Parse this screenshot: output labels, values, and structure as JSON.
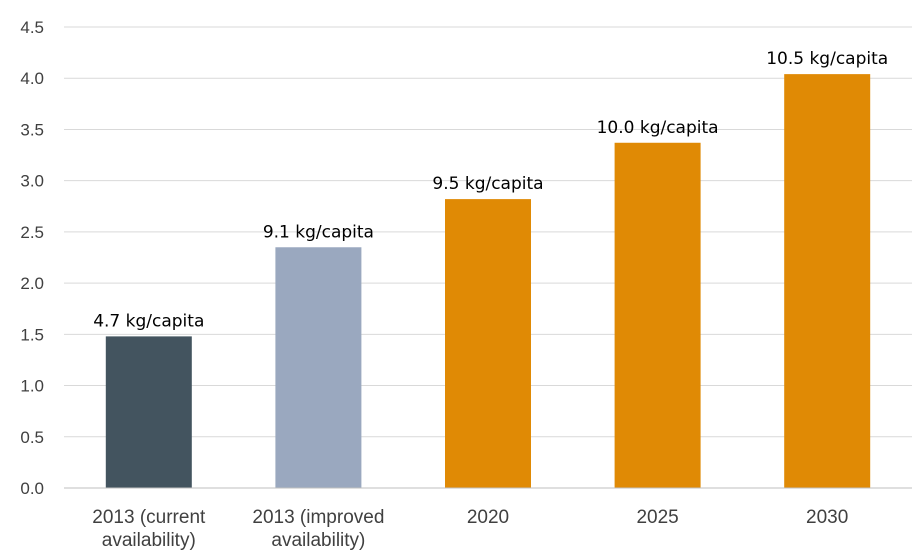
{
  "chart_data": {
    "type": "bar",
    "categories": [
      [
        "2013 (current",
        "availability)"
      ],
      [
        "2013 (improved",
        "availability)"
      ],
      [
        "2020"
      ],
      [
        "2025"
      ],
      [
        "2030"
      ]
    ],
    "values": [
      1.48,
      2.35,
      2.82,
      3.37,
      4.04
    ],
    "data_labels": [
      "4.7 kg/capita",
      "9.1 kg/capita",
      "9.5 kg/capita",
      "10.0 kg/capita",
      "10.5 kg/capita"
    ],
    "colors": [
      "#43545f",
      "#9aa8bf",
      "#e08a05",
      "#e08a05",
      "#e08a05"
    ],
    "ylim": [
      0,
      4.5
    ],
    "yticks": [
      "0.0",
      "0.5",
      "1.0",
      "1.5",
      "2.0",
      "2.5",
      "3.0",
      "3.5",
      "4.0",
      "4.5"
    ],
    "grid": true,
    "legend": "none"
  }
}
